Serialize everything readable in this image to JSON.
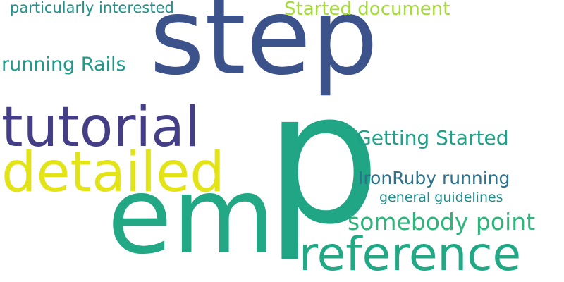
{
  "words": [
    {
      "text": "step",
      "color": "#3b528b"
    },
    {
      "text": "p",
      "color": "#21a685"
    },
    {
      "text": "em",
      "color": "#22a884"
    },
    {
      "text": "tutorial",
      "color": "#433e85"
    },
    {
      "text": "detailed",
      "color": "#e2e418"
    },
    {
      "text": "reference",
      "color": "#22a884"
    },
    {
      "text": "Started document",
      "color": "#a5db36"
    },
    {
      "text": "particularly interested",
      "color": "#21918c"
    },
    {
      "text": "running Rails",
      "color": "#1f9a8a"
    },
    {
      "text": "Getting Started",
      "color": "#1fa188"
    },
    {
      "text": "IronRuby running",
      "color": "#2c728e"
    },
    {
      "text": "general guidelines",
      "color": "#228c8d"
    },
    {
      "text": "somebody point",
      "color": "#2fb47c"
    }
  ]
}
